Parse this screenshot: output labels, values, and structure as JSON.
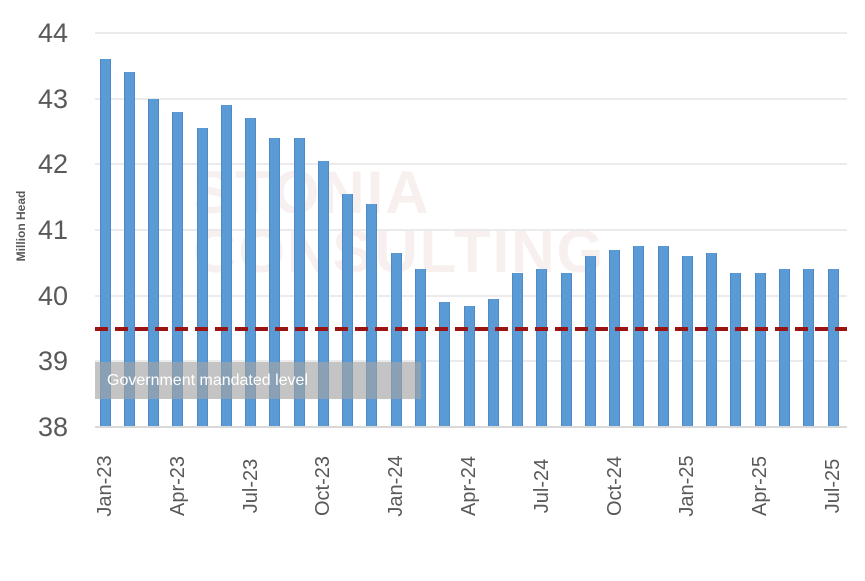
{
  "chart_data": {
    "type": "bar",
    "title": "",
    "xlabel": "",
    "ylabel": "Million Head",
    "ylim": [
      38,
      44
    ],
    "yticks": [
      38,
      39,
      40,
      41,
      42,
      43,
      44
    ],
    "grid": true,
    "legend": false,
    "bar_color": "#5B9BD5",
    "categories": [
      "Jan-23",
      "Feb-23",
      "Mar-23",
      "Apr-23",
      "May-23",
      "Jun-23",
      "Jul-23",
      "Aug-23",
      "Sep-23",
      "Oct-23",
      "Nov-23",
      "Dec-23",
      "Jan-24",
      "Feb-24",
      "Mar-24",
      "Apr-24",
      "May-24",
      "Jun-24",
      "Jul-24",
      "Aug-24",
      "Sep-24",
      "Oct-24",
      "Nov-24",
      "Dec-24",
      "Jan-25",
      "Feb-25",
      "Mar-25",
      "Apr-25",
      "May-25",
      "Jun-25",
      "Jul-25"
    ],
    "values": [
      43.6,
      43.4,
      43.0,
      42.8,
      42.55,
      42.9,
      42.7,
      42.4,
      42.4,
      42.05,
      41.55,
      41.4,
      40.65,
      40.4,
      39.9,
      39.85,
      39.95,
      40.35,
      40.4,
      40.35,
      40.6,
      40.7,
      40.75,
      40.75,
      40.6,
      40.65,
      40.35,
      40.35,
      40.4,
      40.4,
      40.4
    ],
    "xtick_shown_labels": [
      "Jan-23",
      "Apr-23",
      "Jul-23",
      "Oct-23",
      "Jan-24",
      "Apr-24",
      "Jul-24",
      "Oct-24",
      "Jan-25",
      "Apr-25",
      "Jul-25"
    ],
    "xtick_every": 3,
    "reference_line": {
      "label": "Government mandated level",
      "value": 39.5,
      "style": "dashed",
      "color": "#9A1414"
    },
    "watermark": {
      "line1": "STONIA",
      "line2": "CONSULTING"
    }
  },
  "colors": {
    "bar": "#5B9BD5",
    "reference_line": "#9A1414",
    "gridline": "#EBEBEB",
    "axis_line": "#D9D9D9",
    "axis_text": "#595959",
    "watermark": "#F7F0EF",
    "label_box_background": "rgba(165,165,165,0.65)",
    "label_box_text": "#FFFFFF"
  }
}
